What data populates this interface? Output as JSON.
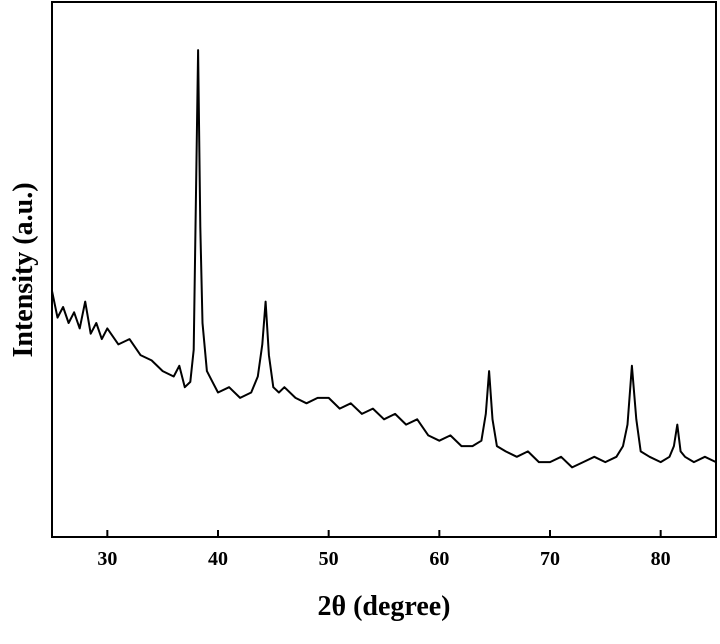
{
  "chart_data": {
    "type": "line",
    "x_label": "2θ (degree)",
    "y_label": "Intensity (a.u.)",
    "x": [
      25,
      25.5,
      26,
      26.5,
      27,
      27.5,
      28,
      28.5,
      29,
      29.5,
      30,
      31,
      32,
      33,
      34,
      35,
      36,
      36.5,
      37,
      37.5,
      37.8,
      38.0,
      38.2,
      38.4,
      38.6,
      39,
      39.5,
      40,
      41,
      42,
      43,
      43.6,
      44.0,
      44.3,
      44.6,
      45,
      45.5,
      46,
      47,
      48,
      49,
      50,
      51,
      52,
      53,
      54,
      55,
      56,
      57,
      58,
      59,
      60,
      61,
      62,
      63,
      63.8,
      64.2,
      64.5,
      64.8,
      65.2,
      66,
      67,
      68,
      69,
      70,
      71,
      72,
      73,
      74,
      75,
      76,
      76.6,
      77.0,
      77.4,
      77.8,
      78.2,
      79,
      80,
      80.8,
      81.2,
      81.5,
      81.8,
      82.2,
      83,
      84,
      85
    ],
    "values": [
      46,
      41,
      43,
      40,
      42,
      39,
      44,
      38,
      40,
      37,
      39,
      36,
      37,
      34,
      33,
      31,
      30,
      32,
      28,
      29,
      35,
      63,
      91,
      58,
      40,
      31,
      29,
      27,
      28,
      26,
      27,
      30,
      36,
      44,
      34,
      28,
      27,
      28,
      26,
      25,
      26,
      26,
      24,
      25,
      23,
      24,
      22,
      23,
      21,
      22,
      19,
      18,
      19,
      17,
      17,
      18,
      23,
      31,
      22,
      17,
      16,
      15,
      16,
      14,
      14,
      15,
      13,
      14,
      15,
      14,
      15,
      17,
      21,
      32,
      22,
      16,
      15,
      14,
      15,
      17,
      21,
      16,
      15,
      14,
      15,
      14
    ],
    "color": "#000000",
    "xlim": [
      25,
      85
    ],
    "ylim": [
      0,
      100
    ],
    "xticks": [
      30,
      40,
      50,
      60,
      70,
      80
    ]
  }
}
